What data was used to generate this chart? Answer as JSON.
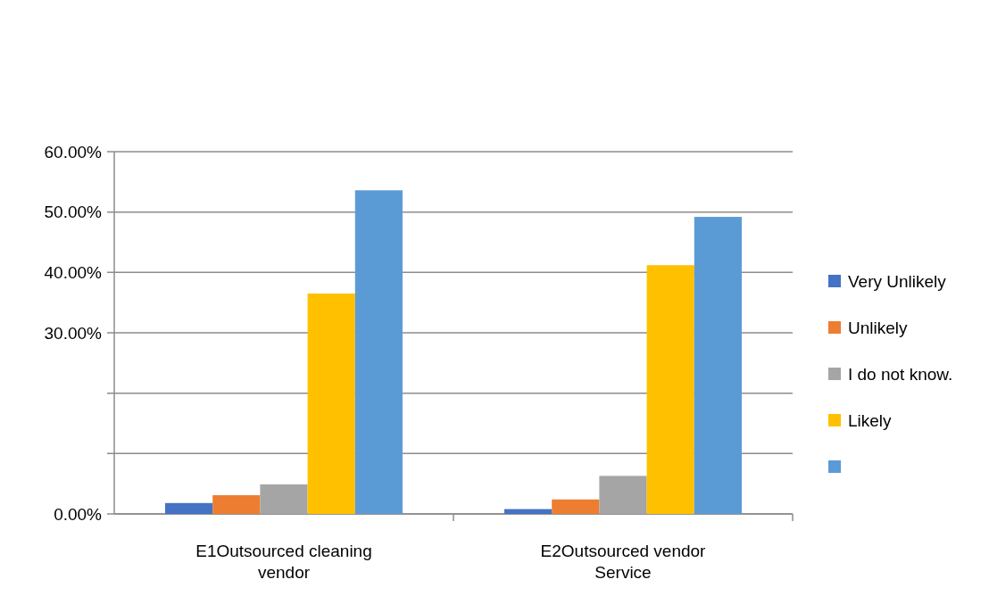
{
  "chart_data": {
    "type": "bar",
    "categories": [
      "E1Outsourced cleaning vendor",
      "E2Outsourced vendor Service"
    ],
    "series": [
      {
        "name": "Very Unlikely",
        "color": "#4472c4",
        "values": [
          1.8,
          0.8
        ]
      },
      {
        "name": "Unlikely",
        "color": "#ed7d31",
        "values": [
          3.1,
          2.4
        ]
      },
      {
        "name": "I do not know.",
        "color": "#a5a5a5",
        "values": [
          4.9,
          6.3
        ]
      },
      {
        "name": "Likely",
        "color": "#ffc000",
        "values": [
          36.5,
          41.2
        ]
      },
      {
        "name": null,
        "color": "#5b9bd5",
        "values": [
          53.6,
          49.2
        ]
      }
    ],
    "ylim": [
      0,
      60
    ],
    "yticks": [
      {
        "value": 0,
        "label": "0.00%"
      },
      {
        "value": 10,
        "label": null
      },
      {
        "value": 20,
        "label": null
      },
      {
        "value": 30,
        "label": "30.00%"
      },
      {
        "value": 40,
        "label": "40.00%"
      },
      {
        "value": 50,
        "label": "50.00%"
      },
      {
        "value": 60,
        "label": "60.00%"
      }
    ],
    "grid": "y",
    "legend": "right"
  }
}
